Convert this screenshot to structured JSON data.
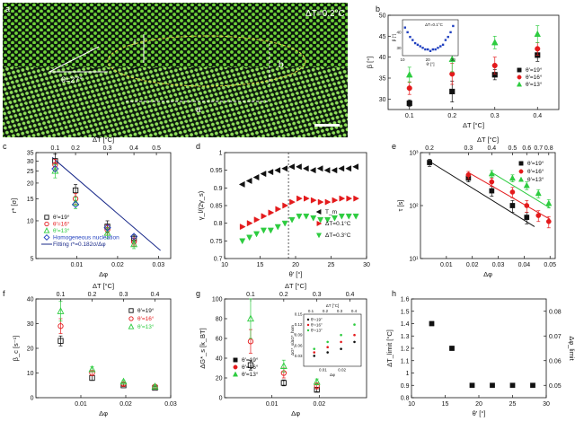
{
  "colors": {
    "black": "#111111",
    "red": "#e41a1c",
    "green": "#2ecc40",
    "blue": "#1f3fbf",
    "navy": "#1a2a8a"
  },
  "panel_a": {
    "label": "a",
    "temp_label": "ΔT=0.2°C",
    "angle_label": "θ=27°",
    "dim_labels": [
      "a",
      "b",
      "l"
    ],
    "description_kind": "microscopy"
  },
  "chart_data": [
    {
      "panel": "b",
      "type": "scatter",
      "title": "",
      "xlabel": "ΔT [°C]",
      "ylabel": "β [°]",
      "xlim": [
        0.05,
        0.45
      ],
      "ylim": [
        27.5,
        50
      ],
      "xticks": [
        0.1,
        0.2,
        0.3,
        0.4
      ],
      "yticks": [
        30,
        35,
        40,
        45,
        50
      ],
      "legend": [
        "θ'=19°",
        "θ'=16°",
        "θ'=13°"
      ],
      "series": [
        {
          "name": "θ'=19°",
          "marker": "square",
          "color": "black",
          "x": [
            0.1,
            0.2,
            0.3,
            0.4
          ],
          "y": [
            29,
            31.8,
            35.8,
            40.5
          ],
          "err": [
            0.8,
            2.5,
            1.2,
            1.5
          ]
        },
        {
          "name": "θ'=16°",
          "marker": "circle",
          "color": "red",
          "x": [
            0.1,
            0.2,
            0.3,
            0.4
          ],
          "y": [
            32.6,
            36,
            38,
            42
          ],
          "err": [
            1.5,
            2.5,
            2,
            1.5
          ]
        },
        {
          "name": "θ'=13°",
          "marker": "triangle",
          "color": "green",
          "x": [
            0.1,
            0.2,
            0.3,
            0.4
          ],
          "y": [
            35.8,
            39.5,
            43.5,
            45.5
          ],
          "err": [
            1.8,
            3,
            1.5,
            2
          ]
        }
      ],
      "inset": {
        "title": "ΔT=0.1°C",
        "xlabel": "θ' [°]",
        "ylabel": "β [°]",
        "xlim": [
          10,
          32
        ],
        "ylim": [
          25,
          48
        ],
        "xticks": [
          10,
          20,
          30
        ],
        "yticks": [
          30,
          40
        ],
        "x": [
          11,
          12,
          13,
          14,
          15,
          16,
          17,
          18,
          19,
          20,
          21,
          22,
          23,
          24,
          25,
          26,
          27,
          28,
          29,
          30
        ],
        "y": [
          43,
          40,
          37,
          35,
          33,
          32,
          31,
          30,
          29,
          29,
          28,
          29,
          29,
          30,
          31,
          32,
          35,
          37,
          40,
          44
        ]
      }
    },
    {
      "panel": "c",
      "type": "scatter",
      "title": "",
      "xlabel": "Δφ",
      "ylabel": "r* [σ]",
      "top_xlabel": "ΔT [°C]",
      "yscale": "log",
      "xlim": [
        0,
        0.033
      ],
      "ylim": [
        5,
        35
      ],
      "xticks": [
        0.01,
        0.02,
        0.03
      ],
      "yticks": [
        5,
        10,
        15,
        20,
        25,
        30,
        35
      ],
      "top_ticks": [
        {
          "value": "0.1",
          "x": 0.0047
        },
        {
          "value": "0.2",
          "x": 0.0097
        },
        {
          "value": "0.3",
          "x": 0.0175
        },
        {
          "value": "0.4",
          "x": 0.024
        },
        {
          "value": "0.5",
          "x": 0.0295
        }
      ],
      "legend": [
        "θ'=19°",
        "θ'=16°",
        "θ'=13°",
        "Homogeneous nucleation",
        "Fitting r*=0.182σ/Δφ"
      ],
      "series": [
        {
          "name": "θ'=19°",
          "marker": "open-square",
          "color": "black",
          "x": [
            0.0047,
            0.0097,
            0.0175,
            0.024
          ],
          "y": [
            30,
            17.5,
            9,
            7.2
          ],
          "err": [
            4,
            2,
            1,
            0.5
          ]
        },
        {
          "name": "θ'=16°",
          "marker": "open-circle",
          "color": "red",
          "x": [
            0.0047,
            0.0097,
            0.0175,
            0.024
          ],
          "y": [
            28,
            15,
            8.5,
            6.8
          ],
          "err": [
            3,
            1.5,
            0.8,
            0.5
          ]
        },
        {
          "name": "θ'=13°",
          "marker": "open-triangle",
          "color": "green",
          "x": [
            0.0047,
            0.0097,
            0.0175,
            0.024
          ],
          "y": [
            25,
            14,
            8,
            6.5
          ],
          "err": [
            3,
            1.5,
            0.8,
            0.5
          ]
        },
        {
          "name": "Homogeneous nucleation",
          "marker": "open-diamond",
          "color": "blue",
          "x": [
            0.0047,
            0.0097,
            0.0175,
            0.024
          ],
          "y": [
            26,
            13.5,
            8.8,
            7.5
          ],
          "err": [
            0,
            0,
            0,
            0
          ]
        }
      ],
      "fit": {
        "name": "Fitting r*=0.182σ/Δφ",
        "x": [
          0.004,
          0.0305
        ],
        "y": [
          32,
          5.8
        ]
      }
    },
    {
      "panel": "d",
      "type": "scatter",
      "title": "",
      "xlabel": "θ' [°]",
      "ylabel": "γ_l/(2γ_s)",
      "xlim": [
        10,
        30
      ],
      "ylim": [
        0.7,
        1.0
      ],
      "xticks": [
        10,
        15,
        20,
        25,
        30
      ],
      "yticks": [
        0.7,
        0.75,
        0.8,
        0.85,
        0.9,
        0.95,
        1.0
      ],
      "vline": 19,
      "legend": [
        "T_m",
        "ΔT=0.1°C",
        "ΔT=0.3°C"
      ],
      "series": [
        {
          "name": "T_m",
          "marker": "left-triangle",
          "color": "black",
          "x": [
            12.5,
            13.5,
            14.5,
            15.5,
            16.5,
            17.5,
            18.5,
            19.5,
            20.5,
            21.5,
            22.5,
            23.5,
            24.5,
            25.5,
            26.5,
            27.5,
            28.5
          ],
          "y": [
            0.91,
            0.92,
            0.93,
            0.94,
            0.945,
            0.95,
            0.955,
            0.96,
            0.96,
            0.955,
            0.95,
            0.955,
            0.95,
            0.95,
            0.955,
            0.955,
            0.96
          ]
        },
        {
          "name": "ΔT=0.1°C",
          "marker": "right-triangle",
          "color": "red",
          "x": [
            12.5,
            13.5,
            14.5,
            15.5,
            16.5,
            17.5,
            18.5,
            19.5,
            20.5,
            21.5,
            22.5,
            23.5,
            24.5,
            25.5,
            26.5,
            27.5,
            28.5
          ],
          "y": [
            0.79,
            0.8,
            0.81,
            0.82,
            0.83,
            0.84,
            0.85,
            0.86,
            0.87,
            0.87,
            0.865,
            0.86,
            0.86,
            0.865,
            0.87,
            0.87,
            0.87
          ]
        },
        {
          "name": "ΔT=0.3°C",
          "marker": "down-triangle",
          "color": "green",
          "x": [
            12.5,
            13.5,
            14.5,
            15.5,
            16.5,
            17.5,
            18.5,
            19.5,
            20.5,
            21.5,
            22.5,
            23.5,
            24.5,
            25.5,
            26.5,
            27.5,
            28.5
          ],
          "y": [
            0.75,
            0.76,
            0.77,
            0.78,
            0.78,
            0.79,
            0.8,
            0.81,
            0.82,
            0.82,
            0.815,
            0.81,
            0.81,
            0.815,
            0.82,
            0.82,
            0.82
          ]
        }
      ]
    },
    {
      "panel": "e",
      "type": "scatter",
      "title": "",
      "xlabel": "Δφ",
      "ylabel": "τ [s]",
      "top_xlabel": "ΔT [°C]",
      "yscale": "log",
      "xlim": [
        0,
        0.052
      ],
      "ylim": [
        10,
        1000
      ],
      "xticks": [
        0.01,
        0.02,
        0.03,
        0.04,
        0.05
      ],
      "yticks": [
        10,
        100,
        1000
      ],
      "ytick_labels": [
        "10¹",
        "10²",
        "10³"
      ],
      "top_ticks": [
        {
          "value": "0.2",
          "x": 0.0035
        },
        {
          "value": "0.3",
          "x": 0.0185
        },
        {
          "value": "0.4",
          "x": 0.0275
        },
        {
          "value": "0.5",
          "x": 0.0355
        },
        {
          "value": "0.6",
          "x": 0.041
        },
        {
          "value": "0.7",
          "x": 0.0455
        },
        {
          "value": "0.8",
          "x": 0.0495
        }
      ],
      "legend": [
        "θ'=19°",
        "θ'=16°",
        "θ'=13°"
      ],
      "series": [
        {
          "name": "θ'=19°",
          "marker": "square",
          "color": "black",
          "x": [
            0.0035,
            0.0185,
            0.0275,
            0.0355,
            0.041
          ],
          "y": [
            650,
            330,
            190,
            100,
            60
          ],
          "err": [
            100,
            50,
            40,
            25,
            15
          ]
        },
        {
          "name": "θ'=16°",
          "marker": "circle",
          "color": "red",
          "x": [
            0.0185,
            0.0275,
            0.0355,
            0.041,
            0.0455,
            0.0495
          ],
          "y": [
            380,
            280,
            180,
            100,
            65,
            50
          ],
          "err": [
            60,
            50,
            40,
            25,
            15,
            12
          ]
        },
        {
          "name": "θ'=13°",
          "marker": "triangle",
          "color": "green",
          "x": [
            0.0275,
            0.0355,
            0.041,
            0.0455,
            0.0495
          ],
          "y": [
            400,
            330,
            240,
            170,
            110
          ],
          "err": [
            60,
            50,
            40,
            30,
            20
          ]
        }
      ],
      "fits": [
        {
          "color": "black",
          "x": [
            0.0035,
            0.044
          ],
          "y": [
            680,
            40
          ]
        },
        {
          "color": "red",
          "x": [
            0.0185,
            0.05
          ],
          "y": [
            420,
            55
          ]
        },
        {
          "color": "green",
          "x": [
            0.0275,
            0.05
          ],
          "y": [
            420,
            90
          ]
        }
      ]
    },
    {
      "panel": "f",
      "type": "scatter",
      "title": "",
      "xlabel": "Δφ",
      "ylabel": "β_c [s⁻¹]",
      "top_xlabel": "ΔT [°C]",
      "xlim": [
        0,
        0.03
      ],
      "ylim": [
        0,
        40
      ],
      "xticks": [
        0.01,
        0.02,
        0.03
      ],
      "yticks": [
        0,
        10,
        20,
        30,
        40
      ],
      "top_ticks": [
        {
          "value": "0.1",
          "x": 0.0055
        },
        {
          "value": "0.2",
          "x": 0.0125
        },
        {
          "value": "0.3",
          "x": 0.0195
        },
        {
          "value": "0.4",
          "x": 0.0265
        }
      ],
      "legend": [
        "θ'=19°",
        "θ'=16°",
        "θ'=13°"
      ],
      "series": [
        {
          "name": "θ'=19°",
          "marker": "open-square",
          "color": "black",
          "x": [
            0.0055,
            0.0125,
            0.0195,
            0.0265
          ],
          "y": [
            23,
            8,
            5,
            4
          ],
          "err": [
            2,
            1,
            0.5,
            0.5
          ]
        },
        {
          "name": "θ'=16°",
          "marker": "open-circle",
          "color": "red",
          "x": [
            0.0055,
            0.0125,
            0.0195,
            0.0265
          ],
          "y": [
            29,
            10,
            5.5,
            4.5
          ],
          "err": [
            3,
            1,
            0.5,
            0.5
          ]
        },
        {
          "name": "θ'=13°",
          "marker": "open-triangle",
          "color": "green",
          "x": [
            0.0055,
            0.0125,
            0.0195,
            0.0265
          ],
          "y": [
            35,
            11.5,
            6.5,
            4.5
          ],
          "err": [
            4,
            1,
            0.5,
            0.5
          ]
        }
      ]
    },
    {
      "panel": "g",
      "type": "scatter",
      "title": "",
      "xlabel": "Δφ",
      "ylabel": "ΔG*_s [k_BT]",
      "top_xlabel": "ΔT [°C]",
      "xlim": [
        0,
        0.03
      ],
      "ylim": [
        0,
        100
      ],
      "xticks": [
        0.01,
        0.02
      ],
      "yticks": [
        0,
        20,
        40,
        60,
        80,
        100
      ],
      "top_ticks": [
        {
          "value": "0.1",
          "x": 0.0055
        },
        {
          "value": "0.2",
          "x": 0.0125
        },
        {
          "value": "0.3",
          "x": 0.0195
        },
        {
          "value": "0.4",
          "x": 0.0265
        }
      ],
      "legend": [
        "θ'=19°",
        "θ'=16°",
        "θ'=13°"
      ],
      "series": [
        {
          "name": "θ'=19°",
          "marker": "open-square",
          "color": "black",
          "x": [
            0.0055,
            0.0125,
            0.0195
          ],
          "y": [
            33,
            15,
            8
          ],
          "err": [
            5,
            3,
            2
          ]
        },
        {
          "name": "θ'=16°",
          "marker": "open-circle",
          "color": "red",
          "x": [
            0.0055,
            0.0125,
            0.0195
          ],
          "y": [
            57,
            25,
            12
          ],
          "err": [
            12,
            5,
            3
          ]
        },
        {
          "name": "θ'=13°",
          "marker": "open-triangle",
          "color": "green",
          "x": [
            0.0055,
            0.0125,
            0.0195
          ],
          "y": [
            80,
            32,
            16
          ],
          "err": [
            20,
            6,
            3
          ]
        }
      ],
      "inset": {
        "xlabel": "Δφ",
        "ylabel": "ΔG*_s/ΔG*_hom",
        "top_xlabel": "ΔT [°C]",
        "xlim": [
          0,
          0.03
        ],
        "ylim": [
          0,
          0.15
        ],
        "xticks": [
          0.01,
          0.02
        ],
        "yticks": [
          0.03,
          0.06,
          0.09,
          0.12,
          0.15
        ],
        "top_ticks": [
          "0.1",
          "0.2",
          "0.3",
          "0.4"
        ],
        "legend": [
          "θ'=19°",
          "θ'=16°",
          "θ'=13°"
        ],
        "series": [
          {
            "name": "θ'=19°",
            "color": "black",
            "x": [
              0.0055,
              0.0125,
              0.0195,
              0.0265
            ],
            "y": [
              0.03,
              0.04,
              0.05,
              0.07
            ]
          },
          {
            "name": "θ'=16°",
            "color": "red",
            "x": [
              0.0055,
              0.0125,
              0.0195,
              0.0265
            ],
            "y": [
              0.04,
              0.055,
              0.07,
              0.09
            ]
          },
          {
            "name": "θ'=13°",
            "color": "green",
            "x": [
              0.0055,
              0.0125,
              0.0195,
              0.0265
            ],
            "y": [
              0.05,
              0.07,
              0.09,
              0.12
            ]
          }
        ]
      }
    },
    {
      "panel": "h",
      "type": "scatter",
      "title": "",
      "xlabel": "θ' [°]",
      "ylabel": "ΔT_limit [°C]",
      "right_ylabel": "Δφ_limit",
      "xlim": [
        10,
        30
      ],
      "ylim": [
        0.8,
        1.6
      ],
      "xticks": [
        10,
        15,
        20,
        25,
        30
      ],
      "yticks": [
        0.8,
        0.9,
        1.0,
        1.1,
        1.2,
        1.3,
        1.4,
        1.5,
        1.6
      ],
      "right_ylim": [
        0.045,
        0.085
      ],
      "right_yticks": [
        0.05,
        0.06,
        0.07,
        0.08
      ],
      "series": [
        {
          "name": "ΔT_limit",
          "marker": "square",
          "color": "black",
          "x": [
            13,
            16,
            19,
            22,
            25,
            28
          ],
          "y": [
            1.4,
            1.2,
            0.9,
            0.9,
            0.9,
            0.9
          ]
        }
      ]
    }
  ]
}
